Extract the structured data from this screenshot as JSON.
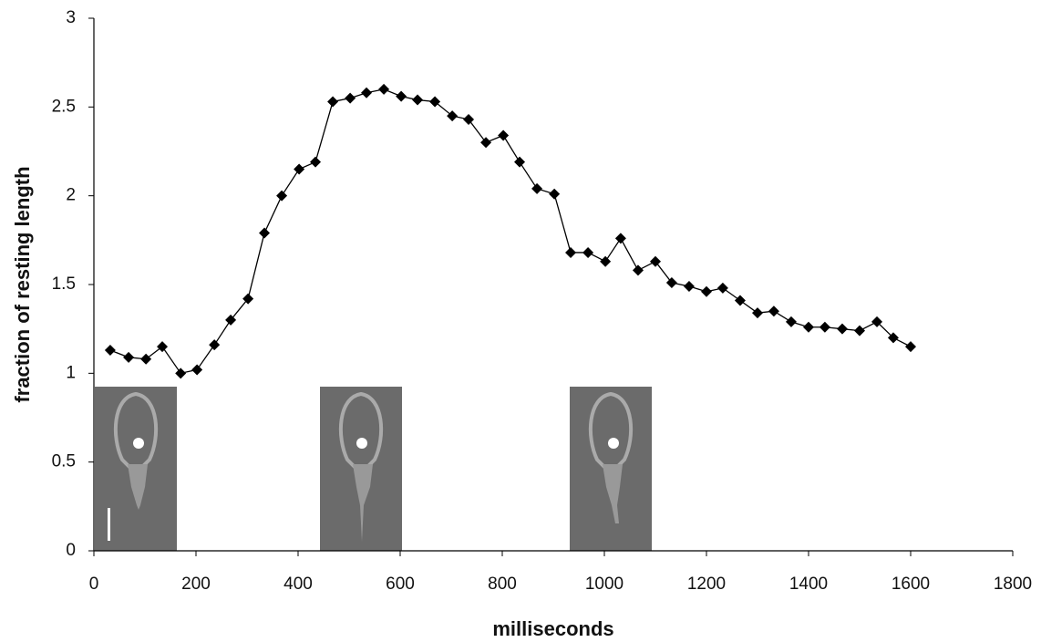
{
  "chart_data": {
    "type": "line",
    "x_label": "milliseconds",
    "y_label": "fraction of resting length",
    "x": [
      32,
      68,
      102,
      134,
      170,
      202,
      236,
      268,
      302,
      334,
      368,
      402,
      434,
      468,
      502,
      534,
      568,
      602,
      634,
      668,
      702,
      734,
      768,
      802,
      834,
      868,
      902,
      934,
      968,
      1002,
      1032,
      1066,
      1100,
      1132,
      1166,
      1200,
      1232,
      1266,
      1300,
      1332,
      1366,
      1400,
      1432,
      1466,
      1500,
      1534,
      1566,
      1600
    ],
    "series": [
      {
        "color": "#000000",
        "values": [
          1.13,
          1.09,
          1.08,
          1.15,
          1.0,
          1.02,
          1.16,
          1.3,
          1.42,
          1.79,
          2.0,
          2.15,
          2.19,
          2.53,
          2.55,
          2.58,
          2.6,
          2.56,
          2.54,
          2.53,
          2.45,
          2.43,
          2.3,
          2.34,
          2.19,
          2.04,
          2.01,
          1.68,
          1.68,
          1.63,
          1.76,
          1.58,
          1.63,
          1.51,
          1.49,
          1.46,
          1.48,
          1.41,
          1.34,
          1.35,
          1.29,
          1.26,
          1.26,
          1.25,
          1.24,
          1.29,
          1.2,
          1.15
        ]
      }
    ],
    "xlim": [
      0,
      1800
    ],
    "xticks": [
      0,
      200,
      400,
      600,
      800,
      1000,
      1200,
      1400,
      1600,
      1800
    ],
    "ylim": [
      0,
      3
    ],
    "yticks": [
      0,
      0.5,
      1,
      1.5,
      2,
      2.5,
      3
    ],
    "grid": false
  }
}
